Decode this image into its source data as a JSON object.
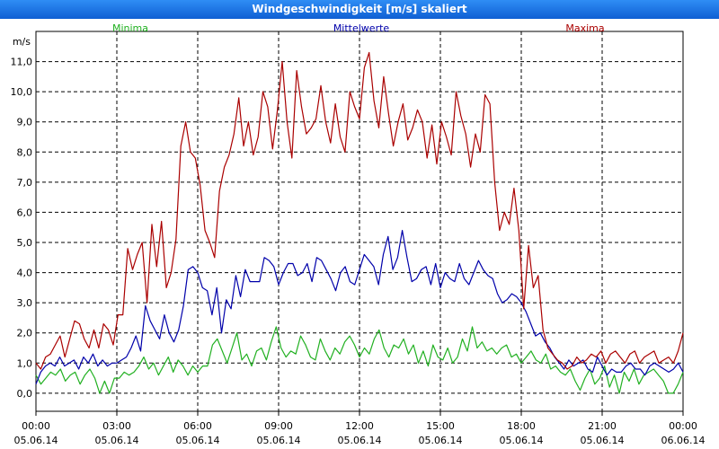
{
  "title": "Windgeschwindigkeit [m/s] skaliert",
  "chart_data": {
    "type": "line",
    "title": "Windgeschwindigkeit [m/s] skaliert",
    "ylabel": "m/s",
    "ylim": [
      -0.6,
      12.0
    ],
    "xlim": [
      0,
      24
    ],
    "y_ticks": [
      "0,0",
      "1,0",
      "2,0",
      "3,0",
      "4,0",
      "5,0",
      "6,0",
      "7,0",
      "8,0",
      "9,0",
      "10,0",
      "11,0"
    ],
    "x_ticks": [
      {
        "time": "00:00",
        "date": "05.06.14"
      },
      {
        "time": "03:00",
        "date": "05.06.14"
      },
      {
        "time": "06:00",
        "date": "05.06.14"
      },
      {
        "time": "09:00",
        "date": "05.06.14"
      },
      {
        "time": "12:00",
        "date": "05.06.14"
      },
      {
        "time": "15:00",
        "date": "05.06.14"
      },
      {
        "time": "18:00",
        "date": "05.06.14"
      },
      {
        "time": "21:00",
        "date": "05.06.14"
      },
      {
        "time": "00:00",
        "date": "06.06.14"
      }
    ],
    "colors": {
      "min": "#21b021",
      "mean": "#0000aa",
      "max": "#aa0000"
    },
    "series": [
      {
        "name": "Minima",
        "key": "min",
        "values": [
          0.6,
          0.3,
          0.5,
          0.7,
          0.6,
          0.8,
          0.4,
          0.6,
          0.7,
          0.3,
          0.6,
          0.8,
          0.5,
          0.0,
          0.4,
          0.0,
          0.5,
          0.5,
          0.7,
          0.6,
          0.7,
          0.9,
          1.2,
          0.8,
          1.0,
          0.6,
          0.9,
          1.2,
          0.7,
          1.1,
          0.9,
          0.6,
          0.9,
          0.7,
          0.9,
          0.9,
          1.6,
          1.8,
          1.4,
          1.0,
          1.5,
          2.0,
          1.1,
          1.3,
          0.9,
          1.4,
          1.5,
          1.1,
          1.7,
          2.2,
          1.5,
          1.2,
          1.4,
          1.3,
          1.9,
          1.6,
          1.2,
          1.1,
          1.8,
          1.4,
          1.1,
          1.5,
          1.3,
          1.7,
          1.9,
          1.6,
          1.2,
          1.5,
          1.3,
          1.8,
          2.1,
          1.5,
          1.2,
          1.6,
          1.5,
          1.8,
          1.3,
          1.6,
          1.0,
          1.4,
          0.9,
          1.6,
          1.2,
          1.1,
          1.5,
          1.0,
          1.2,
          1.8,
          1.4,
          2.2,
          1.5,
          1.7,
          1.4,
          1.5,
          1.3,
          1.5,
          1.6,
          1.2,
          1.3,
          1.0,
          1.2,
          1.4,
          1.1,
          1.0,
          1.3,
          0.8,
          0.9,
          0.7,
          0.6,
          0.8,
          0.4,
          0.1,
          0.5,
          0.8,
          0.3,
          0.5,
          0.9,
          0.2,
          0.6,
          0.0,
          0.7,
          0.4,
          0.8,
          0.3,
          0.6,
          0.7,
          0.8,
          0.6,
          0.4,
          0.0,
          0.0,
          0.3,
          0.7
        ]
      },
      {
        "name": "Mittelwerte",
        "key": "mean",
        "values": [
          0.3,
          0.7,
          0.9,
          1.0,
          0.9,
          1.2,
          0.9,
          1.0,
          1.1,
          0.8,
          1.2,
          1.0,
          1.3,
          0.9,
          1.1,
          0.9,
          1.0,
          1.0,
          1.1,
          1.2,
          1.5,
          1.9,
          1.4,
          2.9,
          2.4,
          2.1,
          1.8,
          2.6,
          2.0,
          1.7,
          2.1,
          2.9,
          4.1,
          4.2,
          4.0,
          3.5,
          3.4,
          2.6,
          3.5,
          2.0,
          3.1,
          2.8,
          3.9,
          3.2,
          4.1,
          3.7,
          3.7,
          3.7,
          4.5,
          4.4,
          4.2,
          3.6,
          4.0,
          4.3,
          4.3,
          3.9,
          4.0,
          4.3,
          3.7,
          4.5,
          4.4,
          4.1,
          3.8,
          3.4,
          4.0,
          4.2,
          3.7,
          3.6,
          4.1,
          4.6,
          4.4,
          4.2,
          3.6,
          4.6,
          5.2,
          4.1,
          4.5,
          5.4,
          4.5,
          3.7,
          3.8,
          4.1,
          4.2,
          3.6,
          4.3,
          3.5,
          4.0,
          3.8,
          3.7,
          4.3,
          3.8,
          3.6,
          4.0,
          4.4,
          4.1,
          3.9,
          3.8,
          3.3,
          3.0,
          3.1,
          3.3,
          3.2,
          3.0,
          2.7,
          2.3,
          1.9,
          2.0,
          1.7,
          1.5,
          1.2,
          1.0,
          0.8,
          1.1,
          0.9,
          1.0,
          1.1,
          0.8,
          0.7,
          1.2,
          0.9,
          0.6,
          0.8,
          0.7,
          0.7,
          0.9,
          1.0,
          0.8,
          0.8,
          0.6,
          0.9,
          1.0,
          0.9,
          0.8,
          0.7,
          0.8,
          1.0,
          0.7
        ]
      },
      {
        "name": "Maxima",
        "key": "max",
        "values": [
          1.0,
          0.8,
          1.2,
          1.3,
          1.6,
          1.9,
          1.2,
          1.8,
          2.4,
          2.3,
          1.8,
          1.5,
          2.1,
          1.5,
          2.3,
          2.1,
          1.6,
          2.6,
          2.6,
          4.8,
          4.1,
          4.6,
          5.0,
          3.0,
          5.6,
          4.2,
          5.7,
          3.5,
          4.0,
          5.1,
          8.2,
          9.0,
          8.0,
          7.8,
          6.9,
          5.4,
          5.0,
          4.5,
          6.7,
          7.5,
          7.9,
          8.6,
          9.8,
          8.2,
          9.0,
          7.9,
          8.5,
          10.0,
          9.5,
          8.1,
          9.4,
          11.0,
          9.0,
          7.8,
          10.7,
          9.5,
          8.6,
          8.8,
          9.1,
          10.2,
          9.0,
          8.3,
          9.6,
          8.5,
          8.0,
          10.0,
          9.5,
          9.1,
          10.8,
          11.3,
          9.7,
          8.8,
          10.5,
          9.3,
          8.2,
          9.0,
          9.6,
          8.4,
          8.8,
          9.4,
          9.0,
          7.8,
          8.9,
          7.6,
          9.0,
          8.5,
          7.9,
          10.0,
          9.2,
          8.6,
          7.5,
          8.6,
          8.0,
          9.9,
          9.6,
          7.0,
          5.4,
          6.0,
          5.6,
          6.8,
          5.4,
          2.8,
          4.9,
          3.5,
          3.9,
          2.1,
          1.5,
          1.3,
          1.1,
          1.0,
          0.8,
          0.9,
          1.2,
          1.0,
          1.1,
          1.3,
          1.2,
          1.4,
          1.0,
          1.3,
          1.4,
          1.2,
          1.0,
          1.3,
          1.4,
          1.0,
          1.2,
          1.3,
          1.4,
          1.0,
          1.1,
          1.2,
          1.0,
          1.4,
          2.0
        ]
      }
    ]
  }
}
